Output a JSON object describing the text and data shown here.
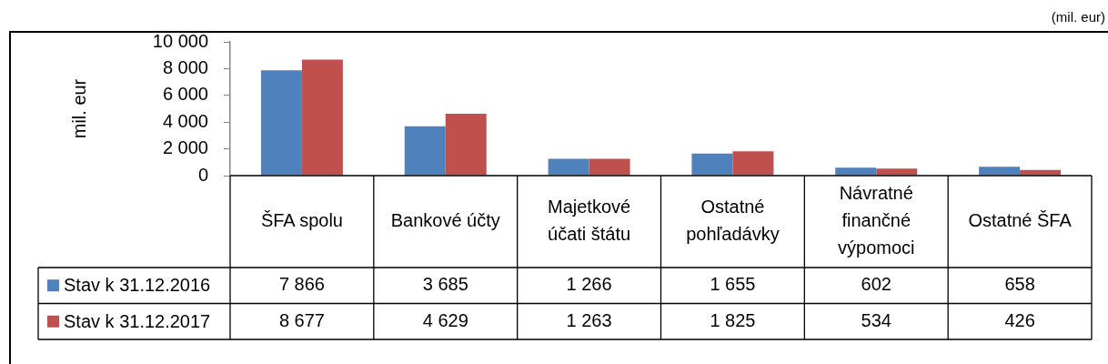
{
  "chart_data": {
    "type": "bar",
    "ylabel": "mil. eur",
    "annotations": [
      "(mil. eur)"
    ],
    "categories": [
      "ŠFA spolu",
      "Bankové účty",
      "Majetkové účati štátu",
      "Ostatné pohľadávky",
      "Návratné finančné výpomoci",
      "Ostatné ŠFA"
    ],
    "series": [
      {
        "name": "Stav k 31.12.2016",
        "color": "#4f81bd",
        "values": [
          7866,
          3685,
          1266,
          1655,
          602,
          658
        ],
        "value_labels": [
          "7 866",
          "3 685",
          "1 266",
          "1 655",
          "602",
          "658"
        ]
      },
      {
        "name": "Stav k 31.12.2017",
        "color": "#c0504d",
        "values": [
          8677,
          4629,
          1263,
          1825,
          534,
          426
        ],
        "value_labels": [
          "8 677",
          "4 629",
          "1 263",
          "1 825",
          "534",
          "426"
        ]
      }
    ],
    "ylim": [
      0,
      10000
    ],
    "yticks": [
      0,
      {
        "value": 2000,
        "label": "2 000"
      },
      {
        "value": 4000,
        "label": "4 000"
      },
      {
        "value": 6000,
        "label": "6 000"
      },
      {
        "value": 8000,
        "label": "8 000"
      },
      {
        "value": 10000,
        "label": "10 000"
      }
    ],
    "grid": false,
    "legend": "bottom left"
  }
}
